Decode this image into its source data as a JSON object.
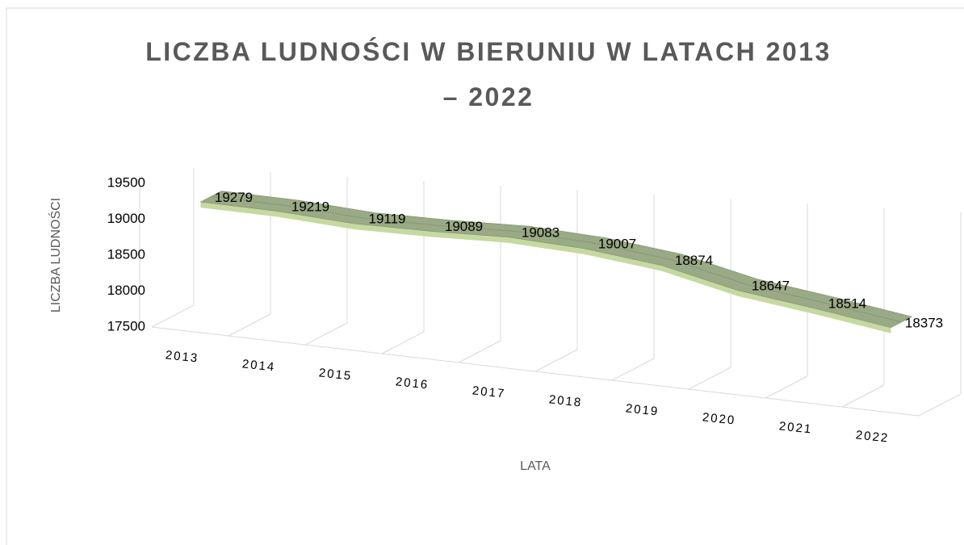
{
  "chart_data": {
    "type": "line3d",
    "title": "LICZBA LUDNOŚCI W BIERUNIU W LATACH 2013 – 2022",
    "x_label": "LATA",
    "y_label": "LICZBA LUDNOŚCI",
    "categories": [
      "2013",
      "2014",
      "2015",
      "2016",
      "2017",
      "2018",
      "2019",
      "2020",
      "2021",
      "2022"
    ],
    "values": [
      19279,
      19219,
      19119,
      19089,
      19083,
      19007,
      18874,
      18647,
      18514,
      18373
    ],
    "color": "#9aa986",
    "ylim": [
      17500,
      19500
    ],
    "yticks": [
      17500,
      18000,
      18500,
      19000,
      19500
    ]
  }
}
